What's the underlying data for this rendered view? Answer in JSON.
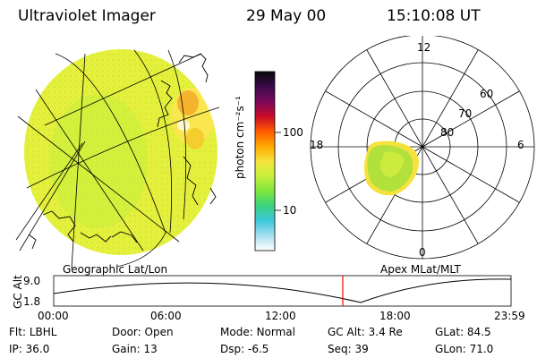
{
  "header": {
    "instrument": "Ultraviolet Imager",
    "date": "29 May 00",
    "time": "15:10:08 UT"
  },
  "colorbar": {
    "label": "photon cm⁻²s⁻¹",
    "ticks": [
      "100",
      "10"
    ],
    "colors": [
      "#0a0a0a",
      "#3a0a4a",
      "#7a0a5a",
      "#c80a28",
      "#ff5a00",
      "#ffa800",
      "#f6e23c",
      "#c8f03c",
      "#7ee63c",
      "#3cd280",
      "#3cc8dc",
      "#a8e0f0",
      "#ffffff"
    ]
  },
  "globe_panel": {
    "label": "Geographic Lat/Lon",
    "image_colors": {
      "base": "#e6f03c",
      "green": "#96e13c",
      "yellow": "#fae650",
      "orange": "#f5aa28"
    }
  },
  "polar_panel": {
    "label": "Apex MLat/MLT",
    "mlt_labels": {
      "top": "12",
      "left": "18",
      "right": "6",
      "bottom": "0"
    },
    "lat_labels": [
      "60",
      "70",
      "80"
    ]
  },
  "altitude_plot": {
    "ylabel": "GC Alt",
    "yticks": [
      "9.0",
      "1.8"
    ],
    "xticks": [
      "00:00",
      "06:00",
      "12:00",
      "18:00",
      "23:59"
    ],
    "current_time_marker": "15:10",
    "marker_color": "#ff0000"
  },
  "info": {
    "flt": {
      "label": "Flt:",
      "value": "LBHL"
    },
    "ip": {
      "label": "IP:",
      "value": "36.0"
    },
    "door": {
      "label": "Door:",
      "value": "Open"
    },
    "gain": {
      "label": "Gain:",
      "value": "13"
    },
    "mode": {
      "label": "Mode:",
      "value": "Normal"
    },
    "dsp": {
      "label": "Dsp:",
      "value": "-6.5"
    },
    "gc_alt": {
      "label": "GC Alt:",
      "value": "3.4 Re"
    },
    "seq": {
      "label": "Seq:",
      "value": "39"
    },
    "glat": {
      "label": "GLat:",
      "value": "84.5"
    },
    "glon": {
      "label": "GLon:",
      "value": "71.0"
    }
  }
}
